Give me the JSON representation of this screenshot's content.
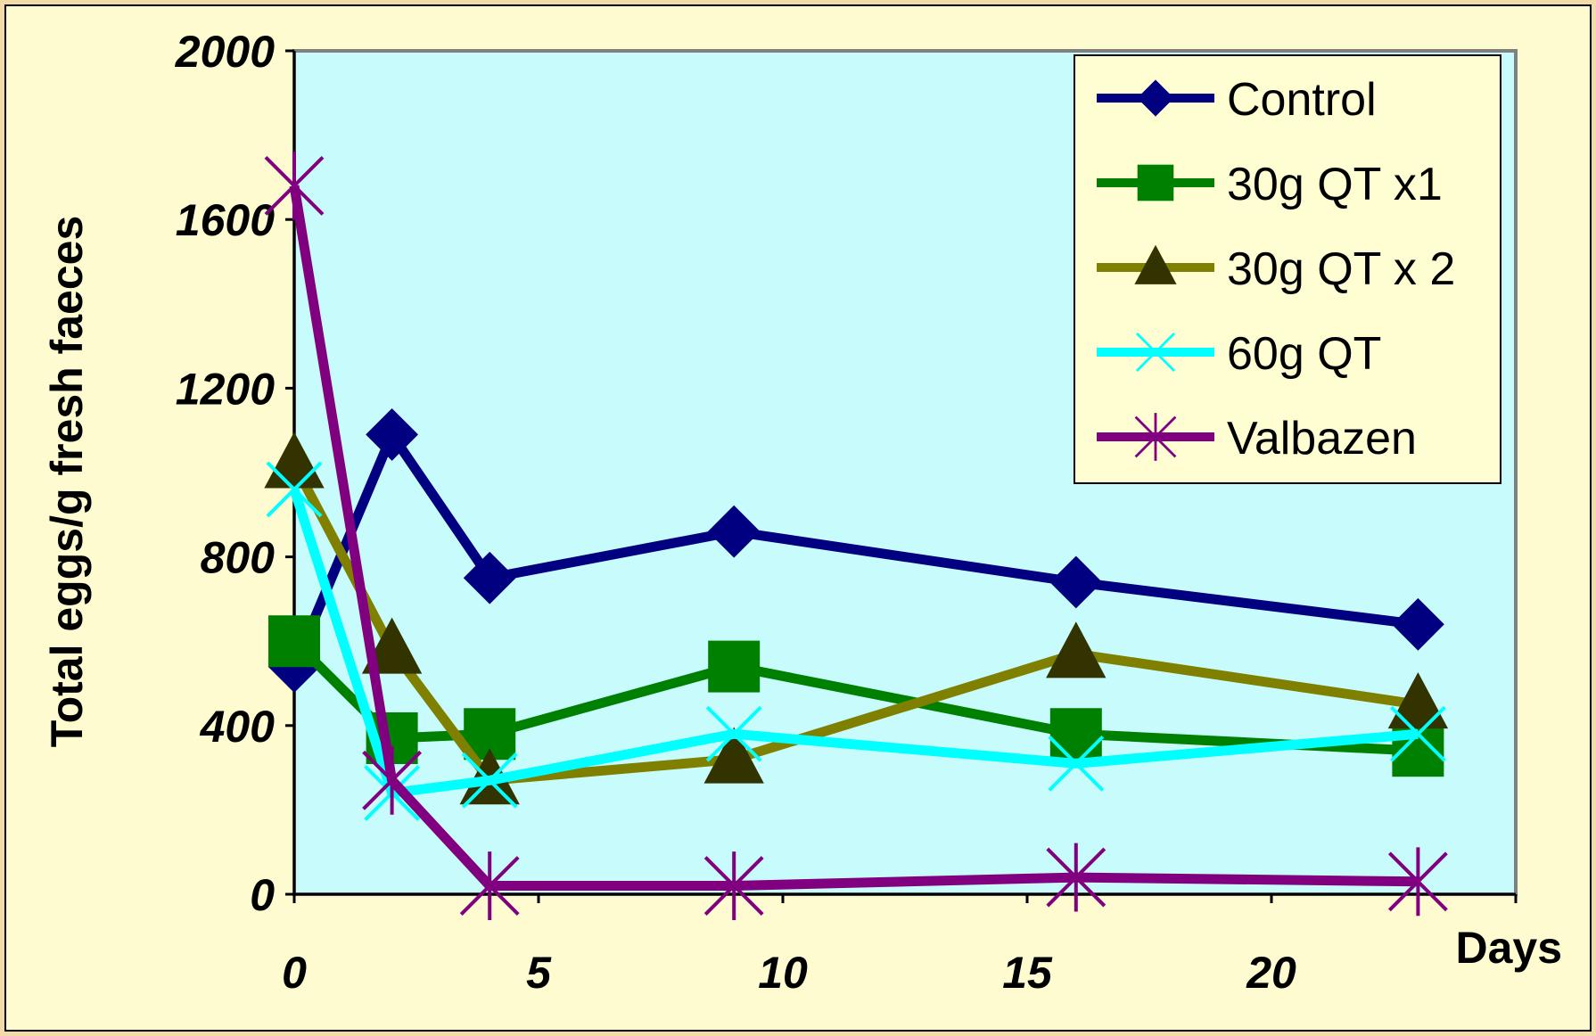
{
  "chart_data": {
    "type": "line",
    "title": "",
    "xlabel": "Days",
    "ylabel": "Total eggs/g fresh faeces",
    "xlim": [
      0,
      25
    ],
    "ylim": [
      0,
      2000
    ],
    "x_ticks": [
      "0",
      "5",
      "10",
      "15",
      "20"
    ],
    "y_ticks": [
      "0",
      "400",
      "800",
      "1200",
      "1600",
      "2000"
    ],
    "legend_position": "top-right",
    "grid": false,
    "colors": {
      "page_background": "#f3dba8",
      "plot_background": "#c8fcfc",
      "legend_background": "#fffdd2"
    },
    "series": [
      {
        "name": "Control",
        "color": "#000080",
        "marker": "diamond",
        "x": [
          0,
          2,
          4,
          9,
          16,
          23
        ],
        "y": [
          540,
          1090,
          750,
          860,
          740,
          640
        ]
      },
      {
        "name": "30g QT x1",
        "color": "#008000",
        "marker": "square",
        "x": [
          0,
          2,
          4,
          9,
          16,
          23
        ],
        "y": [
          600,
          370,
          380,
          540,
          380,
          340
        ]
      },
      {
        "name": "30g QT x 2",
        "color": "#808000",
        "marker": "triangle",
        "x": [
          0,
          2,
          4,
          9,
          16,
          23
        ],
        "y": [
          1020,
          580,
          270,
          320,
          570,
          450
        ]
      },
      {
        "name": "60g QT",
        "color": "#00ffff",
        "marker": "x",
        "x": [
          0,
          2,
          4,
          9,
          16,
          23
        ],
        "y": [
          960,
          240,
          270,
          380,
          310,
          380
        ]
      },
      {
        "name": "Valbazen",
        "color": "#800080",
        "marker": "star",
        "x": [
          0,
          2,
          4,
          9,
          16,
          23
        ],
        "y": [
          1680,
          270,
          20,
          20,
          40,
          30
        ]
      }
    ]
  }
}
